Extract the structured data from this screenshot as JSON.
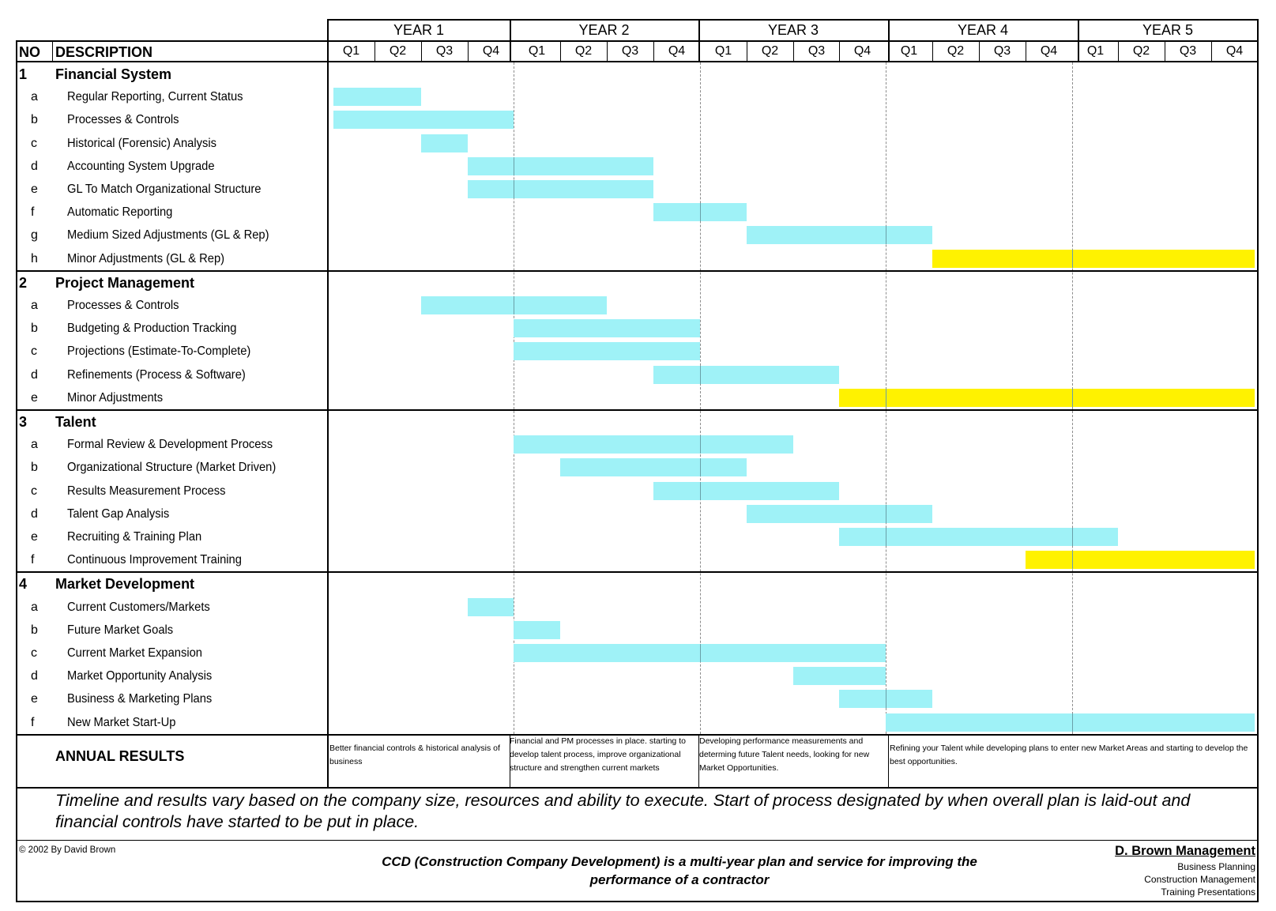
{
  "colors": {
    "bar_standard": "#9ff2f7",
    "bar_ongoing": "#fff200",
    "grid_dash": "#b4b4b4"
  },
  "header": {
    "no_label": "NO",
    "description_label": "DESCRIPTION",
    "years": [
      "YEAR 1",
      "YEAR 2",
      "YEAR 3",
      "YEAR 4",
      "YEAR 5"
    ],
    "quarters": [
      "Q1",
      "Q2",
      "Q3",
      "Q4"
    ]
  },
  "sections": [
    {
      "no": "1",
      "title": "Financial System",
      "tasks": [
        {
          "letter": "a",
          "label": "Regular Reporting, Current Status",
          "start": 0,
          "end": 2,
          "color": "#9ff2f7"
        },
        {
          "letter": "b",
          "label": "Processes & Controls",
          "start": 0,
          "end": 4,
          "color": "#9ff2f7"
        },
        {
          "letter": "c",
          "label": "Historical (Forensic) Analysis",
          "start": 2,
          "end": 3,
          "color": "#9ff2f7"
        },
        {
          "letter": "d",
          "label": "Accounting System Upgrade",
          "start": 3,
          "end": 7,
          "color": "#9ff2f7"
        },
        {
          "letter": "e",
          "label": "GL To Match Organizational Structure",
          "start": 3,
          "end": 7,
          "color": "#9ff2f7"
        },
        {
          "letter": "f",
          "label": "Automatic Reporting",
          "start": 7,
          "end": 9,
          "color": "#9ff2f7"
        },
        {
          "letter": "g",
          "label": "Medium Sized Adjustments (GL & Rep)",
          "start": 9,
          "end": 13,
          "color": "#9ff2f7"
        },
        {
          "letter": "h",
          "label": "Minor Adjustments (GL & Rep)",
          "start": 13,
          "end": 20,
          "color": "#fff200"
        }
      ]
    },
    {
      "no": "2",
      "title": "Project Management",
      "tasks": [
        {
          "letter": "a",
          "label": "Processes & Controls",
          "start": 2,
          "end": 6,
          "color": "#9ff2f7"
        },
        {
          "letter": "b",
          "label": "Budgeting & Production Tracking",
          "start": 4,
          "end": 8,
          "color": "#9ff2f7"
        },
        {
          "letter": "c",
          "label": "Projections (Estimate-To-Complete)",
          "start": 4,
          "end": 8,
          "color": "#9ff2f7"
        },
        {
          "letter": "d",
          "label": "Refinements (Process & Software)",
          "start": 7,
          "end": 11,
          "color": "#9ff2f7"
        },
        {
          "letter": "e",
          "label": "Minor Adjustments",
          "start": 11,
          "end": 20,
          "color": "#fff200"
        }
      ]
    },
    {
      "no": "3",
      "title": "Talent",
      "tasks": [
        {
          "letter": "a",
          "label": "Formal Review & Development Process",
          "start": 4,
          "end": 10,
          "color": "#9ff2f7"
        },
        {
          "letter": "b",
          "label": "Organizational Structure (Market Driven)",
          "start": 5,
          "end": 9,
          "color": "#9ff2f7"
        },
        {
          "letter": "c",
          "label": "Results Measurement Process",
          "start": 7,
          "end": 11,
          "color": "#9ff2f7"
        },
        {
          "letter": "d",
          "label": "Talent Gap Analysis",
          "start": 9,
          "end": 13,
          "color": "#9ff2f7"
        },
        {
          "letter": "e",
          "label": "Recruiting & Training Plan",
          "start": 11,
          "end": 17,
          "color": "#9ff2f7"
        },
        {
          "letter": "f",
          "label": "Continuous Improvement Training",
          "start": 15,
          "end": 20,
          "color": "#fff200"
        }
      ]
    },
    {
      "no": "4",
      "title": "Market Development",
      "tasks": [
        {
          "letter": "a",
          "label": "Current Customers/Markets",
          "start": 3,
          "end": 4,
          "color": "#9ff2f7"
        },
        {
          "letter": "b",
          "label": "Future Market Goals",
          "start": 4,
          "end": 5,
          "color": "#9ff2f7"
        },
        {
          "letter": "c",
          "label": "Current Market Expansion",
          "start": 4,
          "end": 12,
          "color": "#9ff2f7"
        },
        {
          "letter": "d",
          "label": "Market Opportunity Analysis",
          "start": 10,
          "end": 12,
          "color": "#9ff2f7"
        },
        {
          "letter": "e",
          "label": "Business & Marketing Plans",
          "start": 11,
          "end": 13,
          "color": "#9ff2f7"
        },
        {
          "letter": "f",
          "label": "New Market Start-Up",
          "start": 12,
          "end": 20,
          "color": "#9ff2f7"
        }
      ]
    }
  ],
  "annual_results": {
    "label": "ANNUAL RESULTS",
    "year1": "Better financial controls & historical analysis of business",
    "year2": "Financial and PM processes in place. starting to develop talent process, improve organizational structure and strengthen current markets",
    "year3": "Developing performance measurements and determing future Talent needs, looking for new Market Opportunities.",
    "year45": "Refining your Talent while developing plans to enter new Market Areas and starting to develop the best opportunities."
  },
  "disclaimer": "Timeline and results vary based on the company size, resources and ability to execute.  Start of process designated by when overall plan is laid-out and financial controls have started to be put in place.",
  "footer": {
    "copyright": "© 2002 By David Brown",
    "tagline_line1": "CCD (Construction Company Development) is a multi-year plan and service for improving the",
    "tagline_line2": "performance of a contractor",
    "company": "D. Brown Management",
    "services": [
      "Business Planning",
      "Construction Management",
      "Training Presentations"
    ]
  }
}
